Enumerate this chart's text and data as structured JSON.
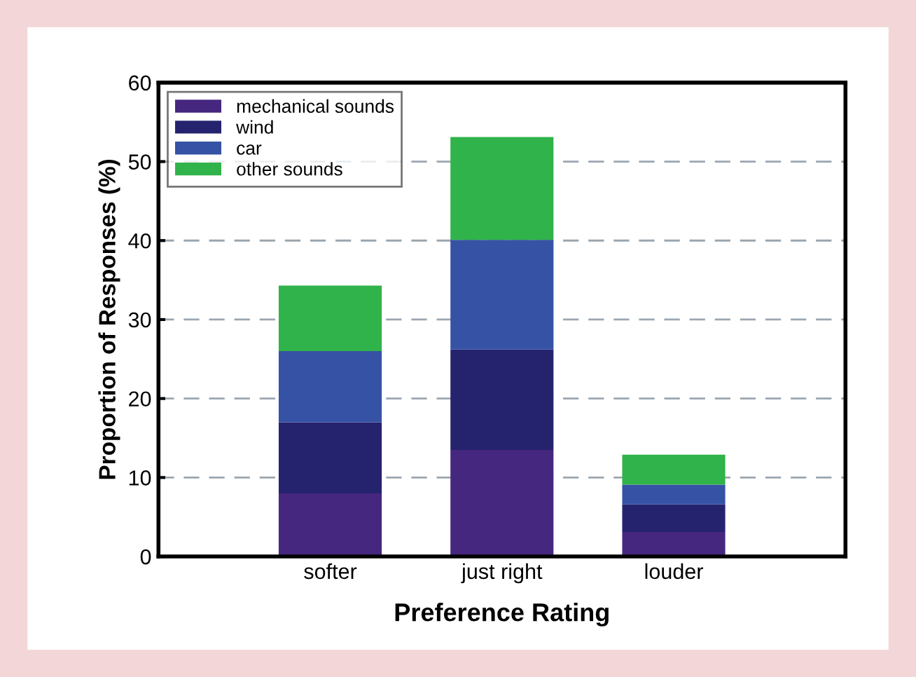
{
  "chart_data": {
    "type": "bar",
    "stacked": true,
    "xlabel": "Preference Rating",
    "ylabel": "Proportion of Responses (%)",
    "categories": [
      "softer",
      "just right",
      "louder"
    ],
    "series": [
      {
        "name": "mechanical sounds",
        "color": "#46277f",
        "values": [
          8,
          13.5,
          3.1
        ]
      },
      {
        "name": "wind",
        "color": "#26236e",
        "values": [
          9,
          12.7,
          3.5
        ]
      },
      {
        "name": "car",
        "color": "#3652a5",
        "values": [
          9,
          13.9,
          2.5
        ]
      },
      {
        "name": "other sounds",
        "color": "#30b34a",
        "values": [
          8.3,
          13,
          3.8
        ]
      }
    ],
    "ylim": [
      0,
      60
    ],
    "yticks": [
      0,
      10,
      20,
      30,
      40,
      50,
      60
    ],
    "grid": "y",
    "legend": "top left"
  }
}
